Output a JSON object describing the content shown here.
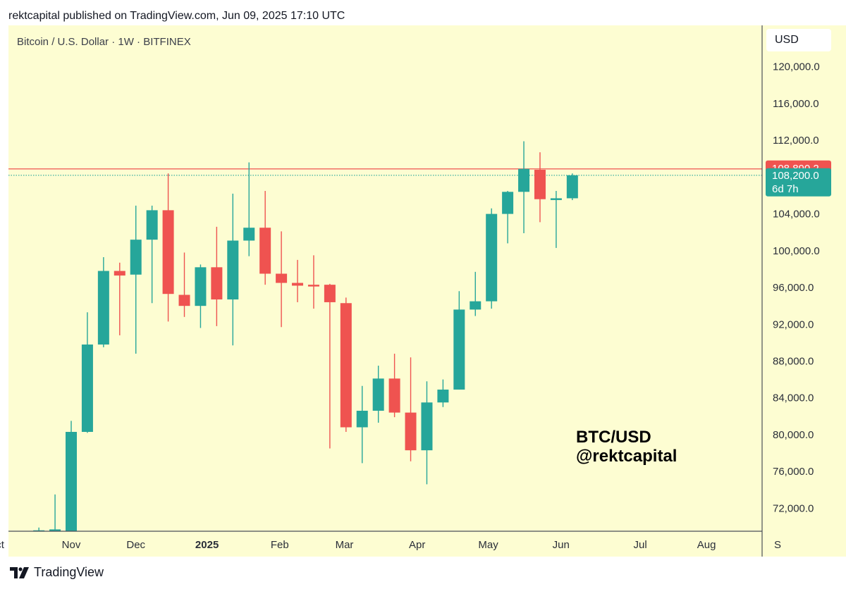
{
  "publisher_line": "rektcapital published on TradingView.com, Jun 09, 2025 17:10 UTC",
  "symbol_line": "Bitcoin / U.S. Dollar · 1W · BITFINEX",
  "currency_button": "USD",
  "footer_brand": "TradingView",
  "colors": {
    "background": "#fdfdd2",
    "up": "#26a69a",
    "down": "#ef5350",
    "axis_line": "#4a4e57",
    "level_line": "#ef5350",
    "price_line": "#26a69a"
  },
  "chart_data": {
    "type": "candlestick",
    "title": "Bitcoin / U.S. Dollar · 1W · BITFINEX",
    "watermark": [
      "BTC/USD",
      "@rektcapital"
    ],
    "y_ticks": [
      72000,
      76000,
      80000,
      84000,
      88000,
      92000,
      96000,
      100000,
      104000,
      108000,
      112000,
      116000,
      120000
    ],
    "y_tick_labels": [
      "72,000.0",
      "76,000.0",
      "80,000.0",
      "84,000.0",
      "88,000.0",
      "92,000.0",
      "96,000.0",
      "100,000.0",
      "104,000.0",
      "108,000.0",
      "112,000.0",
      "116,000.0",
      "120,000.0"
    ],
    "ylim": [
      69500,
      124500
    ],
    "x_axis": {
      "labels": [
        "Oct",
        "Nov",
        "Dec",
        "2025",
        "Feb",
        "Mar",
        "Apr",
        "May",
        "Jun",
        "Jul",
        "Aug",
        "Sep"
      ],
      "display": [
        "ct",
        "Nov",
        "Dec",
        "2025",
        "Feb",
        "Mar",
        "Apr",
        "May",
        "Jun",
        "Jul",
        "Aug",
        "S"
      ],
      "bold": [
        false,
        false,
        false,
        true,
        false,
        false,
        false,
        false,
        false,
        false,
        false,
        false
      ],
      "week_index": [
        -4.4,
        0,
        4,
        8.4,
        12.9,
        16.9,
        21.4,
        25.8,
        30.3,
        35.2,
        39.3,
        43.7
      ]
    },
    "candles": [
      {
        "week": -2,
        "open": 69500,
        "high": 69900,
        "low": 69300,
        "close": 69600
      },
      {
        "week": -1,
        "open": 69500,
        "high": 73500,
        "low": 69300,
        "close": 69700
      },
      {
        "week": 0,
        "open": 69500,
        "high": 81500,
        "low": 69500,
        "close": 80300
      },
      {
        "week": 1,
        "open": 80300,
        "high": 93300,
        "low": 80200,
        "close": 89800
      },
      {
        "week": 2,
        "open": 89800,
        "high": 99300,
        "low": 89500,
        "close": 97800
      },
      {
        "week": 3,
        "open": 97800,
        "high": 98700,
        "low": 90800,
        "close": 97300
      },
      {
        "week": 4,
        "open": 97400,
        "high": 104900,
        "low": 88800,
        "close": 101200
      },
      {
        "week": 5,
        "open": 101200,
        "high": 104900,
        "low": 94300,
        "close": 104400
      },
      {
        "week": 6,
        "open": 104400,
        "high": 108400,
        "low": 92300,
        "close": 95300
      },
      {
        "week": 7,
        "open": 95200,
        "high": 99800,
        "low": 92800,
        "close": 94000
      },
      {
        "week": 8,
        "open": 94000,
        "high": 98500,
        "low": 91600,
        "close": 98200
      },
      {
        "week": 9,
        "open": 98200,
        "high": 102600,
        "low": 91800,
        "close": 94700
      },
      {
        "week": 10,
        "open": 94700,
        "high": 106200,
        "low": 89700,
        "close": 101100
      },
      {
        "week": 11,
        "open": 101100,
        "high": 109600,
        "low": 99400,
        "close": 102500
      },
      {
        "week": 12,
        "open": 102500,
        "high": 106500,
        "low": 96300,
        "close": 97500
      },
      {
        "week": 13,
        "open": 97500,
        "high": 102100,
        "low": 91700,
        "close": 96500
      },
      {
        "week": 14,
        "open": 96500,
        "high": 99000,
        "low": 94400,
        "close": 96200
      },
      {
        "week": 15,
        "open": 96300,
        "high": 99500,
        "low": 93700,
        "close": 96200
      },
      {
        "week": 16,
        "open": 96300,
        "high": 96400,
        "low": 78500,
        "close": 94400
      },
      {
        "week": 17,
        "open": 94300,
        "high": 94900,
        "low": 80300,
        "close": 80800
      },
      {
        "week": 18,
        "open": 80800,
        "high": 85300,
        "low": 76900,
        "close": 82600
      },
      {
        "week": 19,
        "open": 82600,
        "high": 87500,
        "low": 81300,
        "close": 86100
      },
      {
        "week": 20,
        "open": 86100,
        "high": 88800,
        "low": 81900,
        "close": 82400
      },
      {
        "week": 21,
        "open": 82400,
        "high": 88400,
        "low": 77100,
        "close": 78300
      },
      {
        "week": 22,
        "open": 78300,
        "high": 85800,
        "low": 74600,
        "close": 83500
      },
      {
        "week": 23,
        "open": 83500,
        "high": 86000,
        "low": 83000,
        "close": 84900
      },
      {
        "week": 24,
        "open": 84900,
        "high": 95600,
        "low": 84900,
        "close": 93600
      },
      {
        "week": 25,
        "open": 93600,
        "high": 97700,
        "low": 92900,
        "close": 94500
      },
      {
        "week": 26,
        "open": 94500,
        "high": 104600,
        "low": 93700,
        "close": 104000
      },
      {
        "week": 27,
        "open": 104000,
        "high": 106500,
        "low": 100800,
        "close": 106400
      },
      {
        "week": 28,
        "open": 106400,
        "high": 111900,
        "low": 101900,
        "close": 108900
      },
      {
        "week": 29,
        "open": 108800,
        "high": 110700,
        "low": 103100,
        "close": 105600
      },
      {
        "week": 30,
        "open": 105600,
        "high": 106500,
        "low": 100300,
        "close": 105700
      },
      {
        "week": 31,
        "open": 105700,
        "high": 108400,
        "low": 105500,
        "close": 108200
      }
    ],
    "levels": [
      {
        "name": "resistance",
        "value": 108890.2,
        "label": "108,890.2",
        "style": "solid",
        "color": "#ef5350"
      },
      {
        "name": "last-price",
        "value": 108200.0,
        "label": "108,200.0",
        "sublabel": "6d 7h",
        "style": "dotted",
        "color": "#26a69a"
      }
    ]
  }
}
